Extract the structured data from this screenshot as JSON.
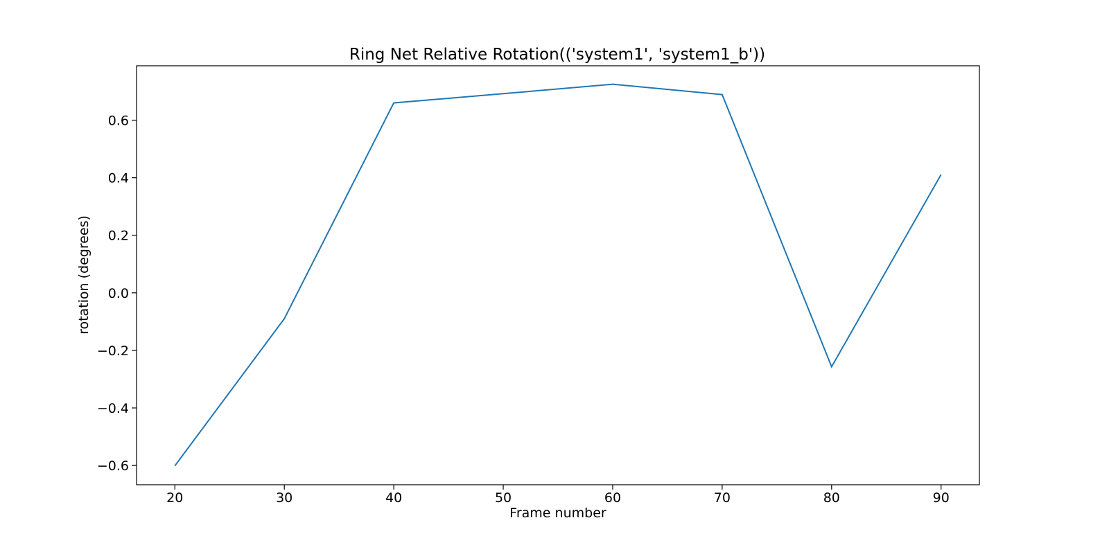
{
  "chart_data": {
    "type": "line",
    "title": "Ring Net Relative Rotation(('system1', 'system1_b'))",
    "xlabel": "Frame number",
    "ylabel": "rotation (degrees)",
    "xlim": [
      16.5,
      93.5
    ],
    "ylim": [
      -0.667,
      0.789
    ],
    "x_ticks": [
      20,
      30,
      40,
      50,
      60,
      70,
      80,
      90
    ],
    "y_ticks": [
      -0.6,
      -0.4,
      -0.2,
      0.0,
      0.2,
      0.4,
      0.6
    ],
    "y_tick_labels": [
      "−0.6",
      "−0.4",
      "−0.2",
      "0.0",
      "0.2",
      "0.4",
      "0.6"
    ],
    "grid": false,
    "legend": "none",
    "series": [
      {
        "x": [
          20,
          30,
          40,
          50,
          60,
          70,
          80,
          90
        ],
        "y": [
          -0.601,
          -0.09,
          0.66,
          0.692,
          0.725,
          0.689,
          -0.257,
          0.411
        ],
        "color": "#1f77b4"
      }
    ]
  }
}
